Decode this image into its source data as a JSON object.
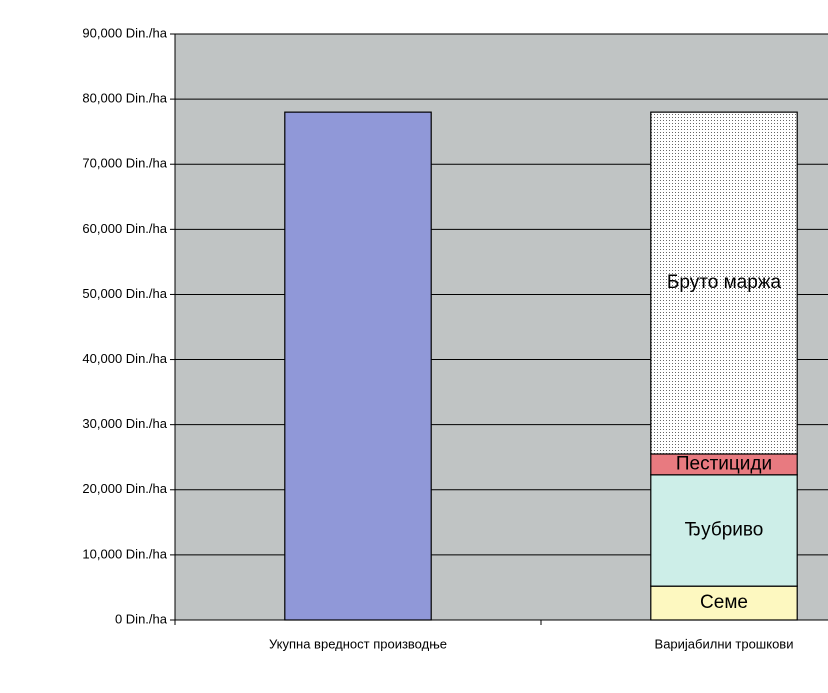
{
  "chart_data": {
    "type": "stacked_bar",
    "categories": [
      "Укупна вредност производње",
      "Варијабилни трошкови"
    ],
    "series": [
      {
        "color": "#9098d8",
        "values": [
          78000,
          null
        ]
      },
      {
        "name": "Семе",
        "color": "#fdf8c0",
        "values": [
          null,
          5200
        ]
      },
      {
        "name": "Ђубриво",
        "color": "#cdeee8",
        "values": [
          null,
          17100
        ]
      },
      {
        "name": "Пестициди",
        "color": "#e87a80",
        "values": [
          null,
          3200
        ]
      },
      {
        "name": "Бруто маржа",
        "color": "#ffffff",
        "pattern": "dots",
        "values": [
          null,
          52500
        ]
      }
    ],
    "ylim": [
      0,
      90000
    ],
    "yticks": [
      {
        "value": 0,
        "label": "0 Din./ha"
      },
      {
        "value": 10000,
        "label": "10,000 Din./ha"
      },
      {
        "value": 20000,
        "label": "20,000 Din./ha"
      },
      {
        "value": 30000,
        "label": "30,000 Din./ha"
      },
      {
        "value": 40000,
        "label": "40,000 Din./ha"
      },
      {
        "value": 50000,
        "label": "50,000 Din./ha"
      },
      {
        "value": 60000,
        "label": "60,000 Din./ha"
      },
      {
        "value": 70000,
        "label": "70,000 Din./ha"
      },
      {
        "value": 80000,
        "label": "80,000 Din./ha"
      },
      {
        "value": 90000,
        "label": "90,000 Din./ha"
      }
    ],
    "grid": true,
    "plot_background": "#c0c4c4"
  }
}
